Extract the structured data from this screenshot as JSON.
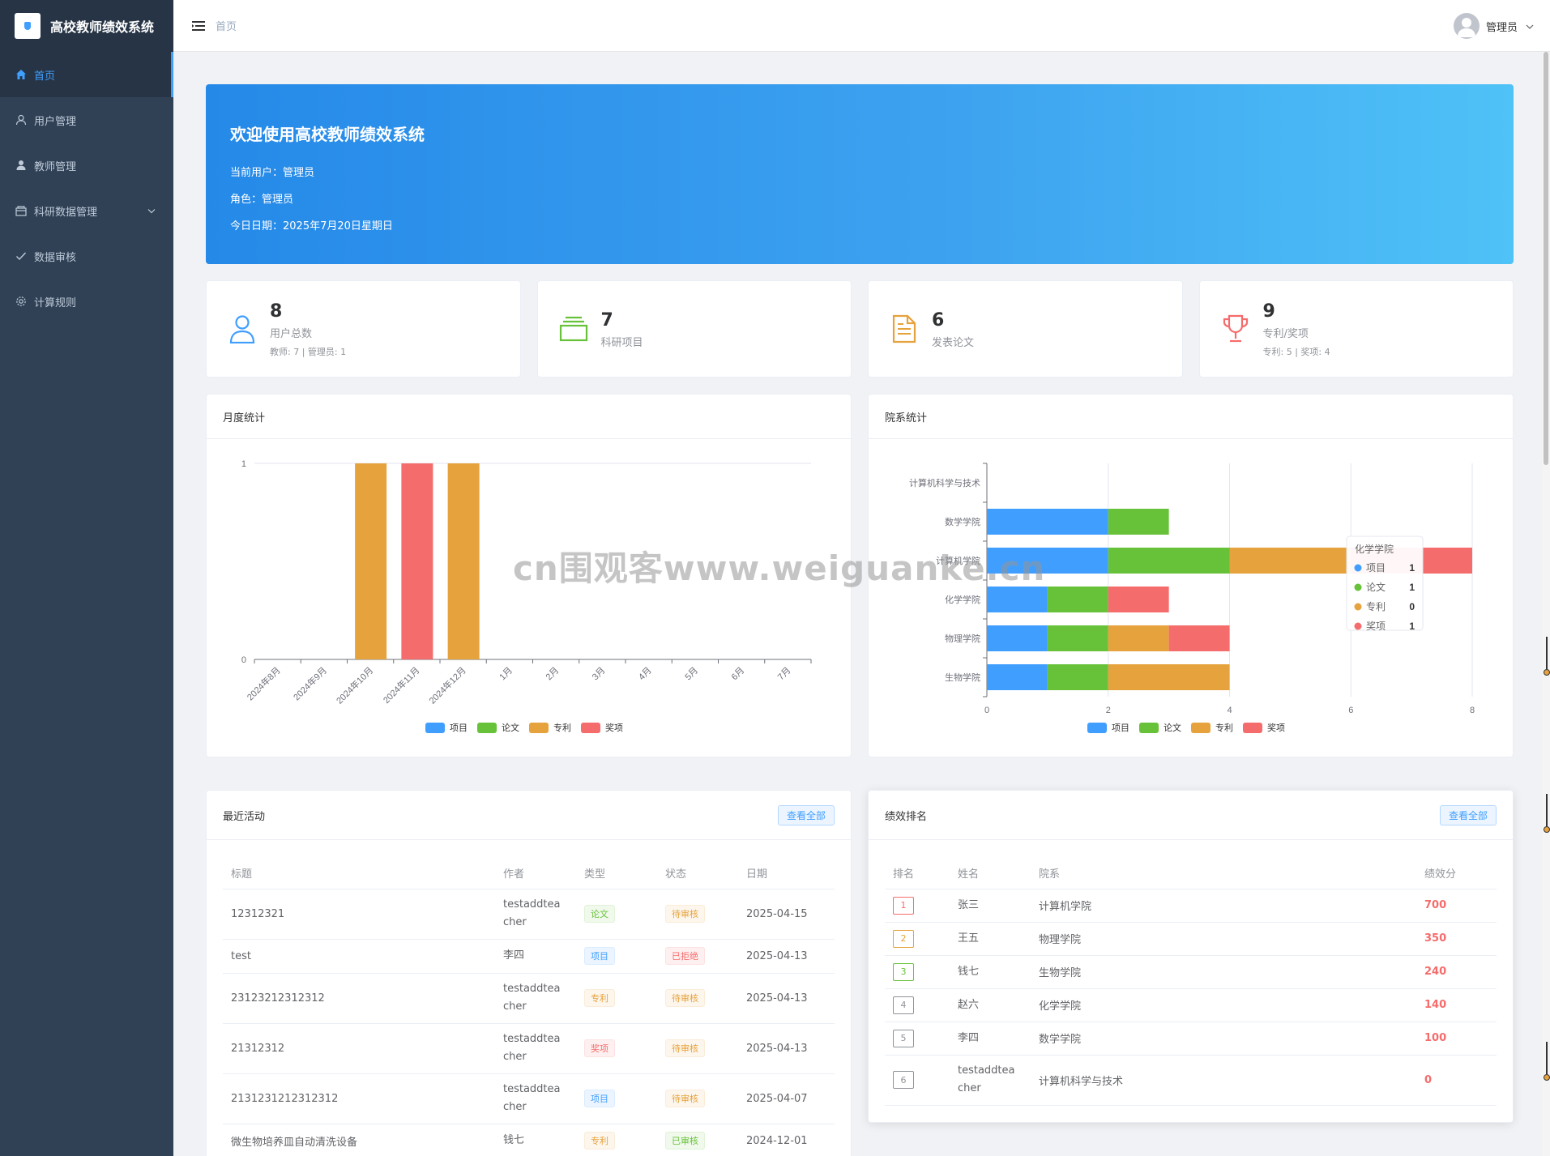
{
  "app": {
    "title": "高校教师绩效系统"
  },
  "sidebar": {
    "items": [
      {
        "label": "首页",
        "icon": "home-icon"
      },
      {
        "label": "用户管理",
        "icon": "user-icon"
      },
      {
        "label": "教师管理",
        "icon": "teacher-icon"
      },
      {
        "label": "科研数据管理",
        "icon": "folder-icon"
      },
      {
        "label": "数据审核",
        "icon": "check-icon"
      },
      {
        "label": "计算规则",
        "icon": "gear-icon"
      }
    ]
  },
  "topbar": {
    "breadcrumb": "首页",
    "user": "管理员"
  },
  "welcome": {
    "title": "欢迎使用高校教师绩效系统",
    "current_user": "当前用户：管理员",
    "role": "角色：管理员",
    "date": "今日日期：2025年7月20日星期日"
  },
  "stats": [
    {
      "value": "8",
      "label": "用户总数",
      "sub": "教师: 7 | 管理员: 1",
      "color": "#409eff"
    },
    {
      "value": "7",
      "label": "科研项目",
      "sub": "",
      "color": "#67c23a"
    },
    {
      "value": "6",
      "label": "发表论文",
      "sub": "",
      "color": "#e6a23c"
    },
    {
      "value": "9",
      "label": "专利/奖项",
      "sub": "专利: 5 | 奖项: 4",
      "color": "#f56c6c"
    }
  ],
  "monthly": {
    "title": "月度统计"
  },
  "dept": {
    "title": "院系统计"
  },
  "colors": {
    "project": "#409eff",
    "paper": "#67c23a",
    "patent": "#e6a23c",
    "award": "#f56c6c"
  },
  "chart_data": [
    {
      "type": "bar",
      "categories": [
        "2024年8月",
        "2024年9月",
        "2024年10月",
        "2024年11月",
        "2024年12月",
        "1月",
        "2月",
        "3月",
        "4月",
        "5月",
        "6月",
        "7月"
      ],
      "series": [
        {
          "name": "项目",
          "values": [
            0,
            0,
            0,
            0,
            0,
            0,
            0,
            0,
            0,
            0,
            0,
            0
          ]
        },
        {
          "name": "论文",
          "values": [
            0,
            0,
            0,
            0,
            0,
            0,
            0,
            0,
            0,
            0,
            0,
            0
          ]
        },
        {
          "name": "专利",
          "values": [
            0,
            0,
            1,
            0,
            1,
            0,
            0,
            0,
            0,
            0,
            0,
            0
          ]
        },
        {
          "name": "奖项",
          "values": [
            0,
            0,
            0,
            1,
            0,
            0,
            0,
            0,
            0,
            0,
            0,
            0
          ]
        }
      ],
      "ylim": [
        0,
        1
      ],
      "yticks": [
        "0",
        "1"
      ],
      "legend": "bottom"
    },
    {
      "type": "bar",
      "orientation": "horizontal",
      "stacked": true,
      "categories": [
        "计算机科学与技术",
        "数学学院",
        "计算机学院",
        "化学学院",
        "物理学院",
        "生物学院"
      ],
      "series": [
        {
          "name": "项目",
          "values": [
            0,
            2,
            2,
            1,
            1,
            1
          ]
        },
        {
          "name": "论文",
          "values": [
            0,
            1,
            2,
            1,
            1,
            1
          ]
        },
        {
          "name": "专利",
          "values": [
            0,
            0,
            2,
            0,
            1,
            2
          ]
        },
        {
          "name": "奖项",
          "values": [
            0,
            0,
            2,
            1,
            1,
            0
          ]
        }
      ],
      "xlim": [
        0,
        8
      ],
      "xticks": [
        "0",
        "2",
        "4",
        "6",
        "8"
      ],
      "legend": "bottom",
      "tooltip": {
        "title": "化学学院",
        "rows": [
          {
            "name": "项目",
            "value": "1"
          },
          {
            "name": "论文",
            "value": "1"
          },
          {
            "name": "专利",
            "value": "0"
          },
          {
            "name": "奖项",
            "value": "1"
          }
        ]
      }
    }
  ],
  "activities": {
    "title": "最近活动",
    "view_all": "查看全部",
    "columns": [
      "标题",
      "作者",
      "类型",
      "状态",
      "日期"
    ],
    "rows": [
      {
        "title": "12312321",
        "author": "testaddteacher",
        "type": "论文",
        "type_tone": "green",
        "status": "待审核",
        "status_tone": "orange",
        "date": "2025-04-15"
      },
      {
        "title": "test",
        "author": "李四",
        "type": "项目",
        "type_tone": "blue",
        "status": "已拒绝",
        "status_tone": "red",
        "date": "2025-04-13"
      },
      {
        "title": "23123212312312",
        "author": "testaddteacher",
        "type": "专利",
        "type_tone": "orange",
        "status": "待审核",
        "status_tone": "orange",
        "date": "2025-04-13"
      },
      {
        "title": "21312312",
        "author": "testaddteacher",
        "type": "奖项",
        "type_tone": "red",
        "status": "待审核",
        "status_tone": "orange",
        "date": "2025-04-13"
      },
      {
        "title": "2131231212312312",
        "author": "testaddteacher",
        "type": "项目",
        "type_tone": "blue",
        "status": "待审核",
        "status_tone": "orange",
        "date": "2025-04-07"
      },
      {
        "title": "微生物培养皿自动清洗设备",
        "author": "钱七",
        "type": "专利",
        "type_tone": "orange",
        "status": "已审核",
        "status_tone": "green",
        "date": "2024-12-01"
      }
    ]
  },
  "ranking": {
    "title": "绩效排名",
    "view_all": "查看全部",
    "columns": [
      "排名",
      "姓名",
      "院系",
      "绩效分"
    ],
    "rows": [
      {
        "rank": "1",
        "name": "张三",
        "dept": "计算机学院",
        "score": "700",
        "color": "#f56c6c"
      },
      {
        "rank": "2",
        "name": "王五",
        "dept": "物理学院",
        "score": "350",
        "color": "#e6a23c"
      },
      {
        "rank": "3",
        "name": "钱七",
        "dept": "生物学院",
        "score": "240",
        "color": "#67c23a"
      },
      {
        "rank": "4",
        "name": "赵六",
        "dept": "化学学院",
        "score": "140",
        "color": "#909399"
      },
      {
        "rank": "5",
        "name": "李四",
        "dept": "数学学院",
        "score": "100",
        "color": "#909399"
      },
      {
        "rank": "6",
        "name": "testaddteacher",
        "dept": "计算机科学与技术",
        "score": "0",
        "color": "#909399"
      }
    ]
  },
  "watermark": "cn围观客www.weiguanke.cn"
}
